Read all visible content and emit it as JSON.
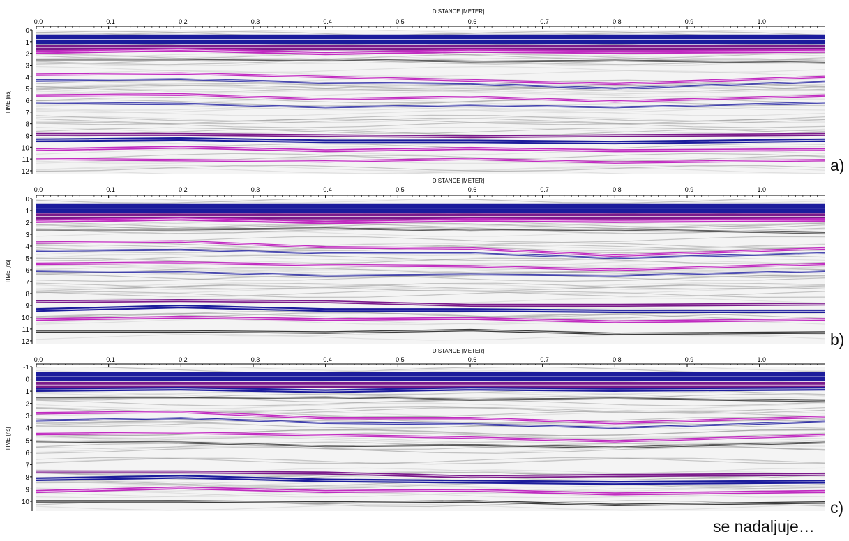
{
  "colors": {
    "background": "#ffffff",
    "band_blue": "#1c1c9c",
    "band_purple": "#7a1a8a",
    "band_magenta": "#c02cc0",
    "band_dark": "#3a3a3a",
    "band_light": "#c8c8c8"
  },
  "footnote": "se nadaljuje…",
  "chart_data": [
    {
      "type": "heatmap",
      "panel_label": "a)",
      "title": "",
      "xlabel": "DISTANCE [METER]",
      "ylabel": "TIME [ns]",
      "xlim": [
        0.0,
        1.09
      ],
      "ylim": [
        12.3,
        0
      ],
      "x_ticks": [
        "0.0",
        "0.1",
        "0.2",
        "0.3",
        "0.4",
        "0.5",
        "0.6",
        "0.7",
        "0.8",
        "0.9",
        "1.0"
      ],
      "y_ticks": [
        "0",
        "1",
        "2",
        "3",
        "4",
        "5",
        "6",
        "7",
        "8",
        "9",
        "10",
        "11",
        "12"
      ],
      "y_tick_values": [
        0,
        1,
        2,
        3,
        4,
        5,
        6,
        7,
        8,
        9,
        10,
        11,
        12
      ],
      "colormap": [
        "blue",
        "purple",
        "magenta",
        "black",
        "grey",
        "white"
      ],
      "reflectors": [
        {
          "t": [
            0.8,
            0.8,
            0.8,
            0.8,
            0.8,
            0.8
          ],
          "x": [
            0.0,
            0.2,
            0.4,
            0.6,
            0.8,
            1.09
          ],
          "color": "blue",
          "width": 0.8
        },
        {
          "t": [
            1.5,
            1.5,
            1.5,
            1.5,
            1.5,
            1.5
          ],
          "x": [
            0.0,
            0.2,
            0.4,
            0.6,
            0.8,
            1.09
          ],
          "color": "purple",
          "width": 0.5
        },
        {
          "t": [
            1.9,
            1.7,
            2.0,
            1.8,
            1.9,
            1.8
          ],
          "x": [
            0.0,
            0.2,
            0.4,
            0.6,
            0.8,
            1.09
          ],
          "color": "magenta",
          "width": 0.3
        },
        {
          "t": [
            2.6,
            2.6,
            2.5,
            2.7,
            2.6,
            2.8
          ],
          "x": [
            0.0,
            0.2,
            0.4,
            0.6,
            0.8,
            1.09
          ],
          "color": "dark",
          "width": 0.15
        },
        {
          "t": [
            3.8,
            3.7,
            4.0,
            4.3,
            4.6,
            4.0
          ],
          "x": [
            0.0,
            0.2,
            0.4,
            0.6,
            0.8,
            1.09
          ],
          "color": "magenta",
          "width": 0.2
        },
        {
          "t": [
            4.3,
            4.2,
            4.5,
            4.6,
            5.0,
            4.4
          ],
          "x": [
            0.0,
            0.2,
            0.4,
            0.6,
            0.8,
            1.09
          ],
          "color": "blue",
          "width": 0.15
        },
        {
          "t": [
            5.6,
            5.5,
            5.9,
            5.7,
            6.1,
            5.6
          ],
          "x": [
            0.0,
            0.2,
            0.4,
            0.6,
            0.8,
            1.09
          ],
          "color": "magenta",
          "width": 0.2
        },
        {
          "t": [
            6.2,
            6.3,
            6.6,
            6.4,
            6.6,
            6.2
          ],
          "x": [
            0.0,
            0.2,
            0.4,
            0.6,
            0.8,
            1.09
          ],
          "color": "blue",
          "width": 0.15
        },
        {
          "t": [
            8.9,
            8.9,
            9.0,
            9.1,
            9.0,
            8.9
          ],
          "x": [
            0.0,
            0.2,
            0.4,
            0.6,
            0.8,
            1.09
          ],
          "color": "purple",
          "width": 0.25
        },
        {
          "t": [
            9.4,
            9.3,
            9.5,
            9.5,
            9.6,
            9.4
          ],
          "x": [
            0.0,
            0.2,
            0.4,
            0.6,
            0.8,
            1.09
          ],
          "color": "blue",
          "width": 0.3
        },
        {
          "t": [
            10.2,
            10.0,
            10.3,
            10.1,
            10.3,
            10.2
          ],
          "x": [
            0.0,
            0.2,
            0.4,
            0.6,
            0.8,
            1.09
          ],
          "color": "magenta",
          "width": 0.25
        },
        {
          "t": [
            11.0,
            11.1,
            11.2,
            11.0,
            11.3,
            11.1
          ],
          "x": [
            0.0,
            0.2,
            0.4,
            0.6,
            0.8,
            1.09
          ],
          "color": "magenta",
          "width": 0.2
        }
      ]
    },
    {
      "type": "heatmap",
      "panel_label": "b)",
      "title": "",
      "xlabel": "DISTANCE [METER]",
      "ylabel": "TIME [ns]",
      "xlim": [
        0.0,
        1.09
      ],
      "ylim": [
        12.3,
        0
      ],
      "x_ticks": [
        "0.0",
        "0.1",
        "0.2",
        "0.3",
        "0.4",
        "0.5",
        "0.6",
        "0.7",
        "0.8",
        "0.9",
        "1.0"
      ],
      "y_ticks": [
        "0",
        "1",
        "2",
        "3",
        "4",
        "5",
        "6",
        "7",
        "8",
        "9",
        "10",
        "11",
        "12"
      ],
      "y_tick_values": [
        0,
        1,
        2,
        3,
        4,
        5,
        6,
        7,
        8,
        9,
        10,
        11,
        12
      ],
      "colormap": [
        "blue",
        "purple",
        "magenta",
        "black",
        "grey",
        "white"
      ],
      "reflectors": [
        {
          "t": [
            0.8,
            0.8,
            0.8,
            0.8,
            0.8,
            0.8
          ],
          "x": [
            0.0,
            0.2,
            0.4,
            0.6,
            0.8,
            1.09
          ],
          "color": "blue",
          "width": 0.8
        },
        {
          "t": [
            1.5,
            1.5,
            1.5,
            1.5,
            1.5,
            1.5
          ],
          "x": [
            0.0,
            0.2,
            0.4,
            0.6,
            0.8,
            1.09
          ],
          "color": "purple",
          "width": 0.5
        },
        {
          "t": [
            1.9,
            1.7,
            2.0,
            1.8,
            1.9,
            1.8
          ],
          "x": [
            0.0,
            0.2,
            0.4,
            0.6,
            0.8,
            1.09
          ],
          "color": "magenta",
          "width": 0.3
        },
        {
          "t": [
            2.6,
            2.6,
            2.5,
            2.7,
            2.6,
            2.9
          ],
          "x": [
            0.0,
            0.2,
            0.4,
            0.6,
            0.8,
            1.09
          ],
          "color": "dark",
          "width": 0.15
        },
        {
          "t": [
            3.7,
            3.6,
            4.1,
            4.2,
            4.8,
            4.2
          ],
          "x": [
            0.0,
            0.2,
            0.4,
            0.6,
            0.8,
            1.09
          ],
          "color": "magenta",
          "width": 0.2
        },
        {
          "t": [
            4.4,
            4.3,
            4.6,
            4.6,
            5.0,
            4.6
          ],
          "x": [
            0.0,
            0.2,
            0.4,
            0.6,
            0.8,
            1.09
          ],
          "color": "blue",
          "width": 0.15
        },
        {
          "t": [
            5.5,
            5.4,
            5.6,
            5.7,
            6.0,
            5.5
          ],
          "x": [
            0.0,
            0.2,
            0.4,
            0.6,
            0.8,
            1.09
          ],
          "color": "magenta",
          "width": 0.2
        },
        {
          "t": [
            6.1,
            6.2,
            6.5,
            6.4,
            6.5,
            6.1
          ],
          "x": [
            0.0,
            0.2,
            0.4,
            0.6,
            0.8,
            1.09
          ],
          "color": "blue",
          "width": 0.15
        },
        {
          "t": [
            8.7,
            8.6,
            8.7,
            9.0,
            9.0,
            8.9
          ],
          "x": [
            0.0,
            0.2,
            0.4,
            0.6,
            0.8,
            1.09
          ],
          "color": "purple",
          "width": 0.25
        },
        {
          "t": [
            9.4,
            9.1,
            9.4,
            9.4,
            9.5,
            9.5
          ],
          "x": [
            0.0,
            0.2,
            0.4,
            0.6,
            0.8,
            1.09
          ],
          "color": "blue",
          "width": 0.3
        },
        {
          "t": [
            10.2,
            10.0,
            10.2,
            10.1,
            10.4,
            10.2
          ],
          "x": [
            0.0,
            0.2,
            0.4,
            0.6,
            0.8,
            1.09
          ],
          "color": "magenta",
          "width": 0.25
        },
        {
          "t": [
            11.2,
            11.2,
            11.3,
            11.1,
            11.4,
            11.3
          ],
          "x": [
            0.0,
            0.2,
            0.4,
            0.6,
            0.8,
            1.09
          ],
          "color": "dark",
          "width": 0.2
        }
      ]
    },
    {
      "type": "heatmap",
      "panel_label": "c)",
      "title": "",
      "xlabel": "DISTANCE [METER]",
      "ylabel": "TIME [ns]",
      "xlim": [
        0.0,
        1.09
      ],
      "ylim": [
        10.8,
        -1
      ],
      "x_ticks": [
        "0.0",
        "0.1",
        "0.2",
        "0.3",
        "0.4",
        "0.5",
        "0.6",
        "0.7",
        "0.8",
        "0.9",
        "1.0"
      ],
      "y_ticks": [
        "-1",
        "0",
        "1",
        "2",
        "3",
        "4",
        "5",
        "6",
        "7",
        "8",
        "9",
        "10"
      ],
      "y_tick_values": [
        -1,
        0,
        1,
        2,
        3,
        4,
        5,
        6,
        7,
        8,
        9,
        10
      ],
      "colormap": [
        "blue",
        "purple",
        "magenta",
        "black",
        "grey",
        "white"
      ],
      "reflectors": [
        {
          "t": [
            -0.2,
            -0.2,
            -0.2,
            -0.2,
            -0.2,
            -0.2
          ],
          "x": [
            0.0,
            0.2,
            0.4,
            0.6,
            0.8,
            1.09
          ],
          "color": "blue",
          "width": 0.8
        },
        {
          "t": [
            0.5,
            0.5,
            0.5,
            0.5,
            0.5,
            0.5
          ],
          "x": [
            0.0,
            0.2,
            0.4,
            0.6,
            0.8,
            1.09
          ],
          "color": "purple",
          "width": 0.5
        },
        {
          "t": [
            0.9,
            0.8,
            1.0,
            0.8,
            0.9,
            0.8
          ],
          "x": [
            0.0,
            0.2,
            0.4,
            0.6,
            0.8,
            1.09
          ],
          "color": "blue",
          "width": 0.3
        },
        {
          "t": [
            1.6,
            1.6,
            1.5,
            1.7,
            1.6,
            1.8
          ],
          "x": [
            0.0,
            0.2,
            0.4,
            0.6,
            0.8,
            1.09
          ],
          "color": "dark",
          "width": 0.15
        },
        {
          "t": [
            2.8,
            2.7,
            3.2,
            3.2,
            3.6,
            3.1
          ],
          "x": [
            0.0,
            0.2,
            0.4,
            0.6,
            0.8,
            1.09
          ],
          "color": "magenta",
          "width": 0.2
        },
        {
          "t": [
            3.4,
            3.2,
            3.6,
            3.7,
            4.0,
            3.5
          ],
          "x": [
            0.0,
            0.2,
            0.4,
            0.6,
            0.8,
            1.09
          ],
          "color": "blue",
          "width": 0.15
        },
        {
          "t": [
            4.5,
            4.4,
            4.6,
            4.8,
            5.1,
            4.6
          ],
          "x": [
            0.0,
            0.2,
            0.4,
            0.6,
            0.8,
            1.09
          ],
          "color": "magenta",
          "width": 0.2
        },
        {
          "t": [
            5.1,
            5.2,
            5.5,
            5.4,
            5.6,
            5.2
          ],
          "x": [
            0.0,
            0.2,
            0.4,
            0.6,
            0.8,
            1.09
          ],
          "color": "dark",
          "width": 0.15
        },
        {
          "t": [
            7.6,
            7.6,
            7.7,
            8.0,
            7.9,
            7.8
          ],
          "x": [
            0.0,
            0.2,
            0.4,
            0.6,
            0.8,
            1.09
          ],
          "color": "purple",
          "width": 0.25
        },
        {
          "t": [
            8.2,
            8.0,
            8.3,
            8.4,
            8.5,
            8.4
          ],
          "x": [
            0.0,
            0.2,
            0.4,
            0.6,
            0.8,
            1.09
          ],
          "color": "blue",
          "width": 0.3
        },
        {
          "t": [
            9.2,
            8.9,
            9.2,
            9.1,
            9.4,
            9.2
          ],
          "x": [
            0.0,
            0.2,
            0.4,
            0.6,
            0.8,
            1.09
          ],
          "color": "magenta",
          "width": 0.25
        },
        {
          "t": [
            10.0,
            10.0,
            10.1,
            10.0,
            10.3,
            10.1
          ],
          "x": [
            0.0,
            0.2,
            0.4,
            0.6,
            0.8,
            1.09
          ],
          "color": "dark",
          "width": 0.2
        }
      ]
    }
  ]
}
